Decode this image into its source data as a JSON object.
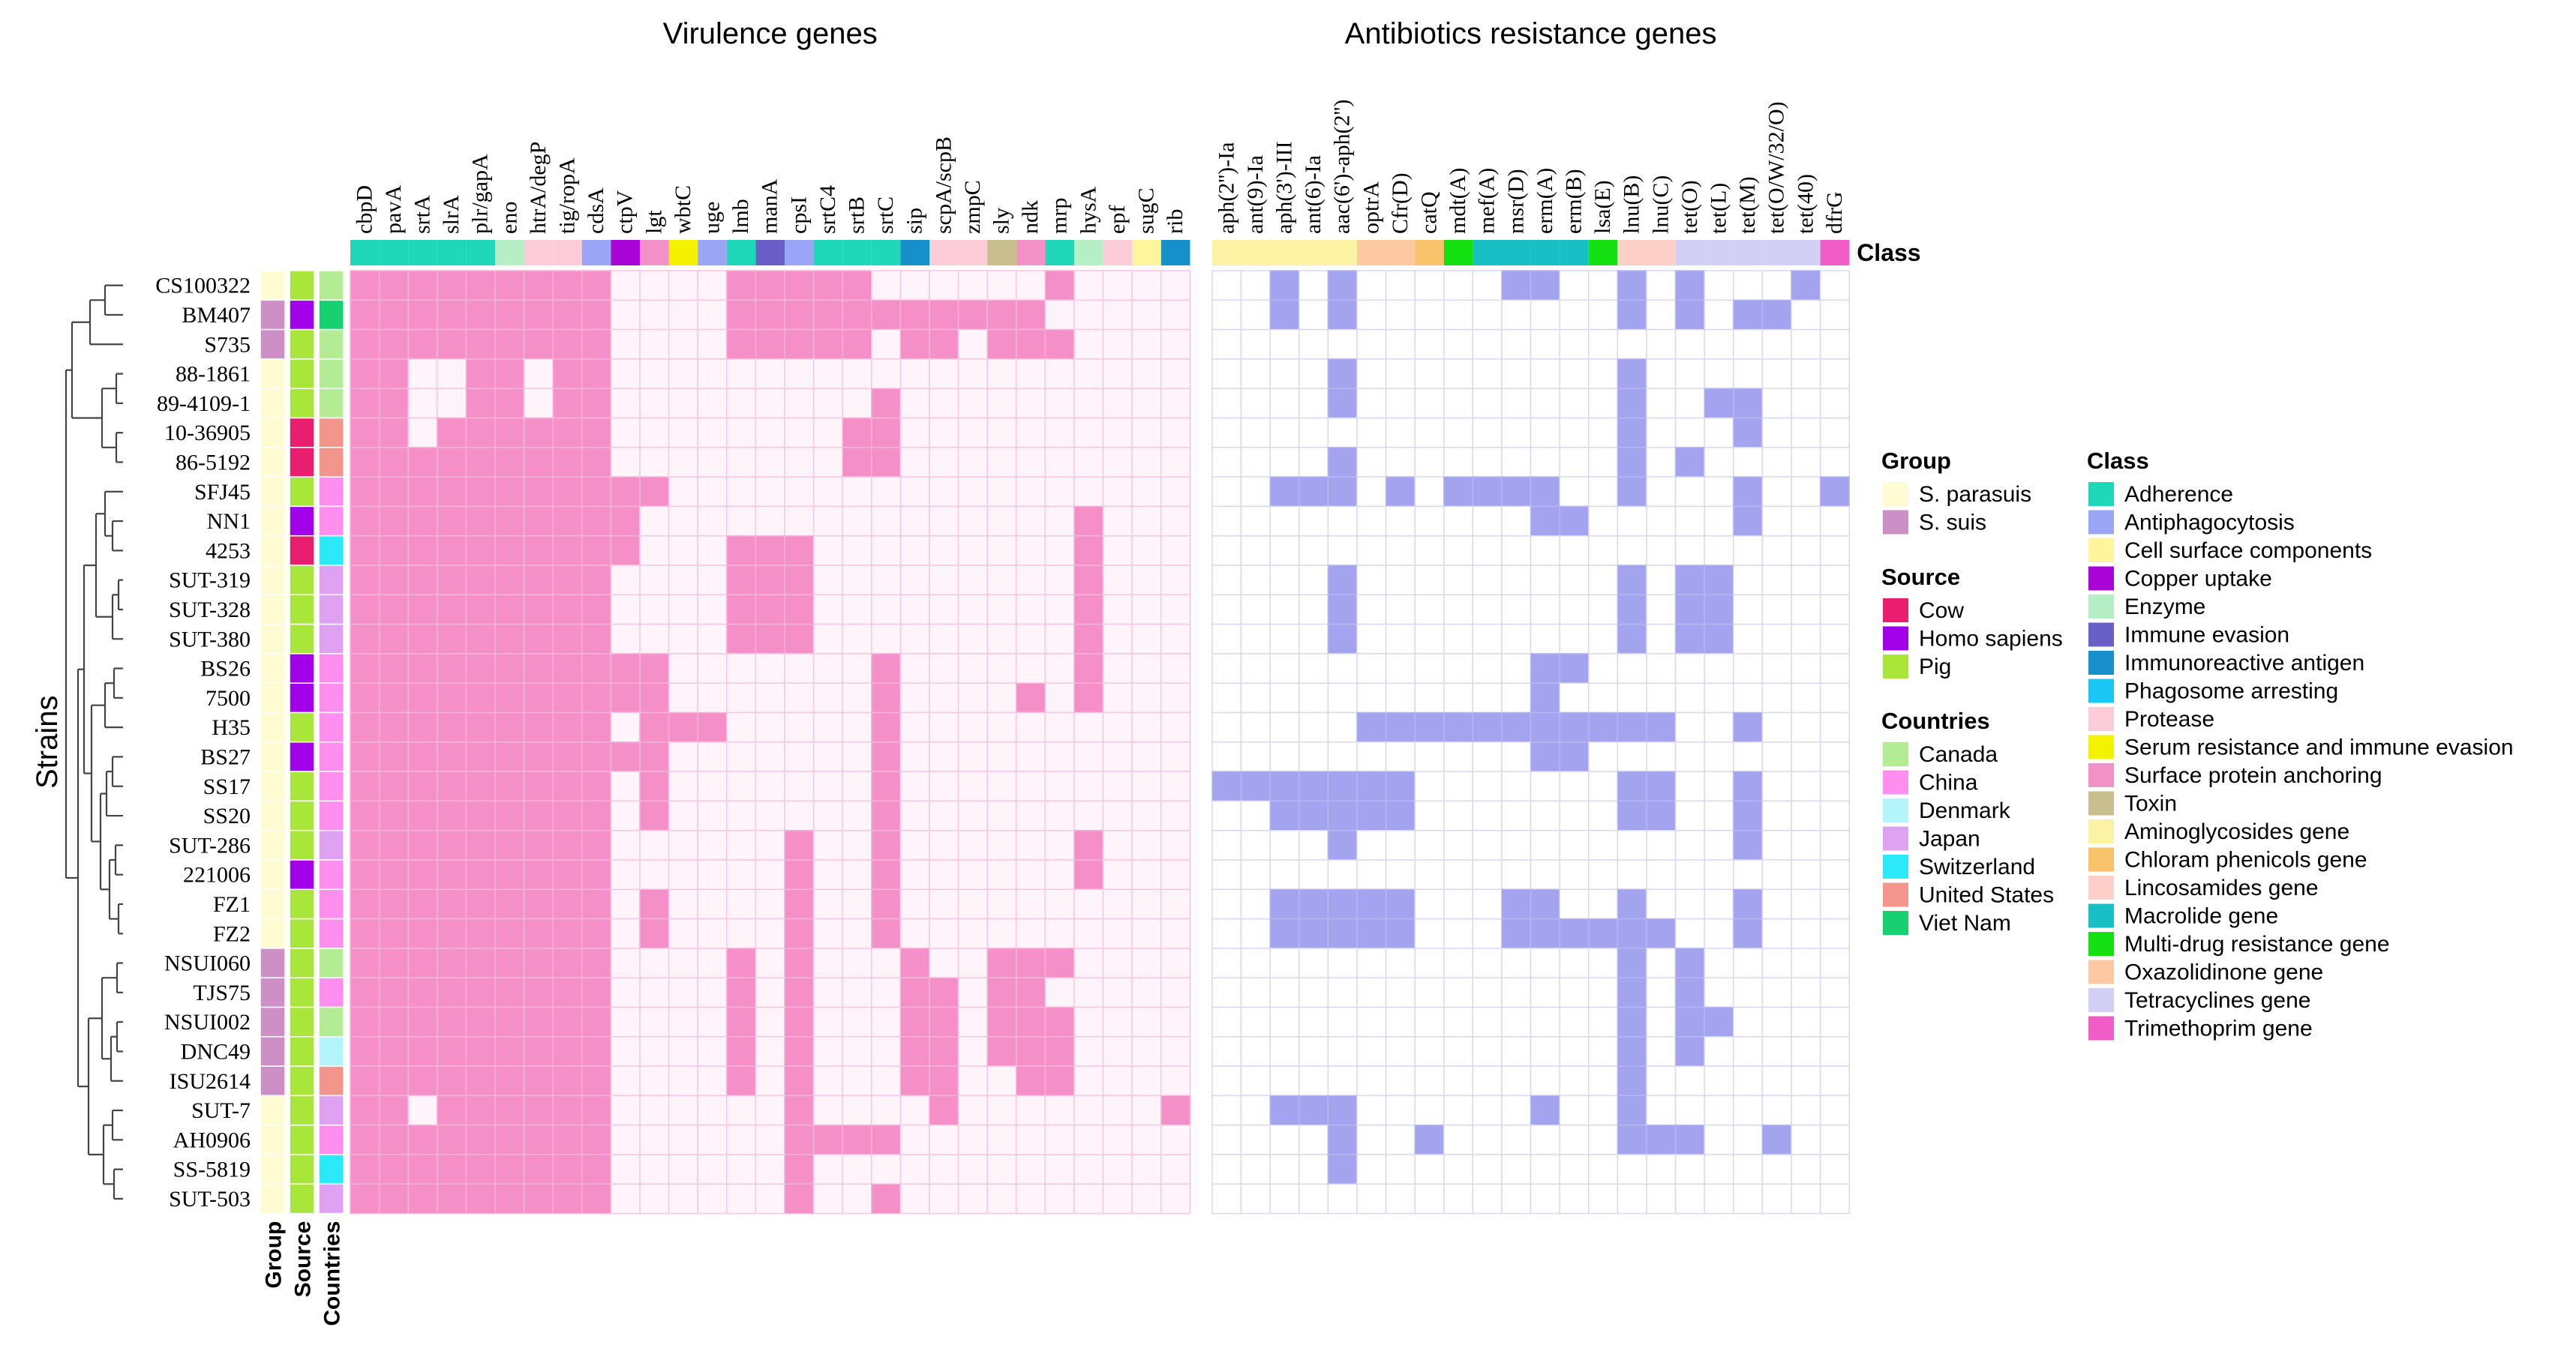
{
  "chart_data": {
    "type": "heatmap",
    "title_virulence": "Virulence genes",
    "title_antibiotics": "Antibiotics resistance genes",
    "class_label": "Class",
    "strains_label": "Strains",
    "annotation_labels": [
      "Group",
      "Source",
      "Countries"
    ],
    "colors": {
      "virulence_present": "#F48FC8",
      "virulence_absent": "#FFF4FA",
      "virulence_grid": "#F7C6E2",
      "resistance_present": "#A3A3F0",
      "resistance_absent": "#FFFFFF",
      "resistance_grid": "#D8D8F4"
    },
    "strains": [
      "CS100322",
      "BM407",
      "S735",
      "88-1861",
      "89-4109-1",
      "10-36905",
      "86-5192",
      "SFJ45",
      "NN1",
      "4253",
      "SUT-319",
      "SUT-328",
      "SUT-380",
      "BS26",
      "7500",
      "H35",
      "BS27",
      "SS17",
      "SS20",
      "SUT-286",
      "221006",
      "FZ1",
      "FZ2",
      "NSUI060",
      "TJS75",
      "NSUI002",
      "DNC49",
      "ISU2614",
      "SUT-7",
      "AH0906",
      "SS-5819",
      "SUT-503"
    ],
    "group": [
      "S. parasuis",
      "S. suis",
      "S. suis",
      "S. parasuis",
      "S. parasuis",
      "S. parasuis",
      "S. parasuis",
      "S. parasuis",
      "S. parasuis",
      "S. parasuis",
      "S. parasuis",
      "S. parasuis",
      "S. parasuis",
      "S. parasuis",
      "S. parasuis",
      "S. parasuis",
      "S. parasuis",
      "S. parasuis",
      "S. parasuis",
      "S. parasuis",
      "S. parasuis",
      "S. parasuis",
      "S. parasuis",
      "S. suis",
      "S. suis",
      "S. suis",
      "S. suis",
      "S. suis",
      "S. parasuis",
      "S. parasuis",
      "S. parasuis",
      "S. parasuis"
    ],
    "source": [
      "Pig",
      "Homo sapiens",
      "Pig",
      "Pig",
      "Pig",
      "Cow",
      "Cow",
      "Pig",
      "Homo sapiens",
      "Cow",
      "Pig",
      "Pig",
      "Pig",
      "Homo sapiens",
      "Homo sapiens",
      "Pig",
      "Homo sapiens",
      "Pig",
      "Pig",
      "Pig",
      "Homo sapiens",
      "Pig",
      "Pig",
      "Pig",
      "Pig",
      "Pig",
      "Pig",
      "Pig",
      "Pig",
      "Pig",
      "Pig",
      "Pig"
    ],
    "countries": [
      "Canada",
      "Viet Nam",
      "Canada",
      "Canada",
      "Canada",
      "United States",
      "United States",
      "China",
      "China",
      "Switzerland",
      "Japan",
      "Japan",
      "Japan",
      "China",
      "China",
      "China",
      "China",
      "China",
      "China",
      "Japan",
      "China",
      "China",
      "China",
      "Canada",
      "China",
      "Canada",
      "Denmark",
      "United States",
      "Japan",
      "China",
      "Switzerland",
      "Japan"
    ],
    "virulence_genes": [
      "cbpD",
      "pavA",
      "srtA",
      "slrA",
      "plr/gapA",
      "eno",
      "htrA/degP",
      "tig/ropA",
      "cdsA",
      "ctpV",
      "lgt",
      "wbtC",
      "uge",
      "lmb",
      "manA",
      "cpsI",
      "srtC4",
      "srtB",
      "srtC",
      "sip",
      "scpA/scpB",
      "zmpC",
      "sly",
      "ndk",
      "mrp",
      "hysA",
      "epf",
      "sugC",
      "rib"
    ],
    "virulence_class": [
      "Adherence",
      "Adherence",
      "Adherence",
      "Adherence",
      "Adherence",
      "Enzyme",
      "Protease",
      "Protease",
      "Antiphagocytosis",
      "Copper uptake",
      "Surface protein anchoring",
      "Serum resistance and immune evasion",
      "Antiphagocytosis",
      "Adherence",
      "Immune evasion",
      "Antiphagocytosis",
      "Adherence",
      "Adherence",
      "Adherence",
      "Immunoreactive antigen",
      "Protease",
      "Protease",
      "Toxin",
      "Surface protein anchoring",
      "Adherence",
      "Enzyme",
      "Protease",
      "Cell surface components",
      "Immunoreactive antigen"
    ],
    "resistance_genes": [
      "aph(2'')-Ia",
      "ant(9)-Ia",
      "aph(3')-III",
      "ant(6)-Ia",
      "aac(6')-aph(2'')",
      "optrA",
      "Cfr(D)",
      "catQ",
      "mdt(A)",
      "mef(A)",
      "msr(D)",
      "erm(A)",
      "erm(B)",
      "lsa(E)",
      "lnu(B)",
      "lnu(C)",
      "tet(O)",
      "tet(L)",
      "tet(M)",
      "tet(O/W/32/O)",
      "tet(40)",
      "dfrG"
    ],
    "resistance_class": [
      "Aminoglycosides gene",
      "Aminoglycosides gene",
      "Aminoglycosides gene",
      "Aminoglycosides gene",
      "Aminoglycosides gene",
      "Oxazolidinone gene",
      "Oxazolidinone gene",
      "Chloram phenicols gene",
      "Multi-drug resistance gene",
      "Macrolide gene",
      "Macrolide gene",
      "Macrolide gene",
      "Macrolide gene",
      "Multi-drug resistance gene",
      "Lincosamides gene",
      "Lincosamides gene",
      "Tetracyclines gene",
      "Tetracyclines gene",
      "Tetracyclines gene",
      "Tetracyclines gene",
      "Tetracyclines gene",
      "Trimethoprim gene"
    ],
    "virulence_matrix": [
      "11111111100001111100000010000",
      "11111111100001111111111100000",
      "11111111100001111101101110000",
      "11001101100000000000000000000",
      "11001101100000000010000000000",
      "11011111100000000110000000000",
      "11111111100000000110000000000",
      "11111111111000000000000000000",
      "11111111110000000000000001000",
      "11111111110001110000000001000",
      "11111111100001110000000001000",
      "11111111100001110000000001000",
      "11111111100001110000000001000",
      "11111111111000000010000001000",
      "11111111111000000010000101000",
      "11111111101110000010000000000",
      "11111111111000000010000000000",
      "11111111101000000010000000000",
      "11111111101000000010000000000",
      "11111111100000010010000001000",
      "11111111100000010010000001000",
      "11111111101000010010000000000",
      "11111111101000010010000000000",
      "11111111100001010001001110000",
      "11111111100001010001101100000",
      "11111111100001010001101110000",
      "11111111100001010001101110000",
      "11111111100001010001100110000",
      "11011111100000010000100000001",
      "11111111100000011110000000000",
      "11111111100000010000000000000",
      "11111111100000010010000000000"
    ],
    "resistance_matrix": [
      "0010100000110010100010",
      "0010100000000010101100",
      "0000000000000000000000",
      "0000100000000010000000",
      "0000100000000010011000",
      "0000000000000010001000",
      "0000100000000010100000",
      "0011101011110010001001",
      "0000000000011000001000",
      "0000000000000000000000",
      "0000100000000010110000",
      "0000100000000010110000",
      "0000100000000010110000",
      "0000000000011000000000",
      "0000000000010000000000",
      "0000011111111111001000",
      "0000000000011000000000",
      "1111111000000011001000",
      "0011111000000011001000",
      "0000100000000000001000",
      "0000000000000000000000",
      "0011111000110010001000",
      "0011111000111111001000",
      "0000000000000010100000",
      "0000000000000010100000",
      "0000000000000010110000",
      "0000000000000010100000",
      "0000000000000010000000",
      "0011100000010010000000",
      "0000100100000011100100",
      "0000100000000000000000",
      "0000000000000000000000"
    ],
    "legend": {
      "group": {
        "title": "Group",
        "items": [
          {
            "label": "S. parasuis",
            "color": "#FFFBD2"
          },
          {
            "label": "S. suis",
            "color": "#CC8FC6"
          }
        ]
      },
      "source": {
        "title": "Source",
        "items": [
          {
            "label": "Cow",
            "color": "#EA1E6E"
          },
          {
            "label": "Homo sapiens",
            "color": "#A100E8"
          },
          {
            "label": "Pig",
            "color": "#A9E53B"
          }
        ]
      },
      "countries": {
        "title": "Countries",
        "items": [
          {
            "label": "Canada",
            "color": "#B4EC96"
          },
          {
            "label": "China",
            "color": "#FF8FEE"
          },
          {
            "label": "Denmark",
            "color": "#B3F5FA"
          },
          {
            "label": "Japan",
            "color": "#DFA2F3"
          },
          {
            "label": "Switzerland",
            "color": "#2BE9F7"
          },
          {
            "label": "United States",
            "color": "#F2958D"
          },
          {
            "label": "Viet Nam",
            "color": "#19D070"
          }
        ]
      },
      "class": {
        "title": "Class",
        "items": [
          {
            "label": "Adherence",
            "color": "#1FD8B9"
          },
          {
            "label": "Antiphagocytosis",
            "color": "#9AA5F5"
          },
          {
            "label": "Cell surface components",
            "color": "#FFF59C"
          },
          {
            "label": "Copper uptake",
            "color": "#AB04D6"
          },
          {
            "label": "Enzyme",
            "color": "#B6EFC6"
          },
          {
            "label": "Immune evasion",
            "color": "#6A5FC6"
          },
          {
            "label": "Immunoreactive antigen",
            "color": "#178FCB"
          },
          {
            "label": "Phagosome arresting",
            "color": "#1AC7F4"
          },
          {
            "label": "Protease",
            "color": "#FCCCD9"
          },
          {
            "label": "Serum resistance and immune evasion",
            "color": "#F5F200"
          },
          {
            "label": "Surface protein anchoring",
            "color": "#F291C6"
          },
          {
            "label": "Toxin",
            "color": "#C9BF8E"
          },
          {
            "label": "Aminoglycosides gene",
            "color": "#FCF2A3"
          },
          {
            "label": "Chloram phenicols gene",
            "color": "#F9C36B"
          },
          {
            "label": "Lincosamides gene",
            "color": "#FCCFC9"
          },
          {
            "label": "Macrolide gene",
            "color": "#18BFC4"
          },
          {
            "label": "Multi-drug resistance gene",
            "color": "#15E012"
          },
          {
            "label": "Oxazolidinone gene",
            "color": "#FCC9A2"
          },
          {
            "label": "Tetracyclines gene",
            "color": "#D3D0F5"
          },
          {
            "label": "Trimethoprim gene",
            "color": "#F25CC7"
          }
        ]
      }
    }
  }
}
